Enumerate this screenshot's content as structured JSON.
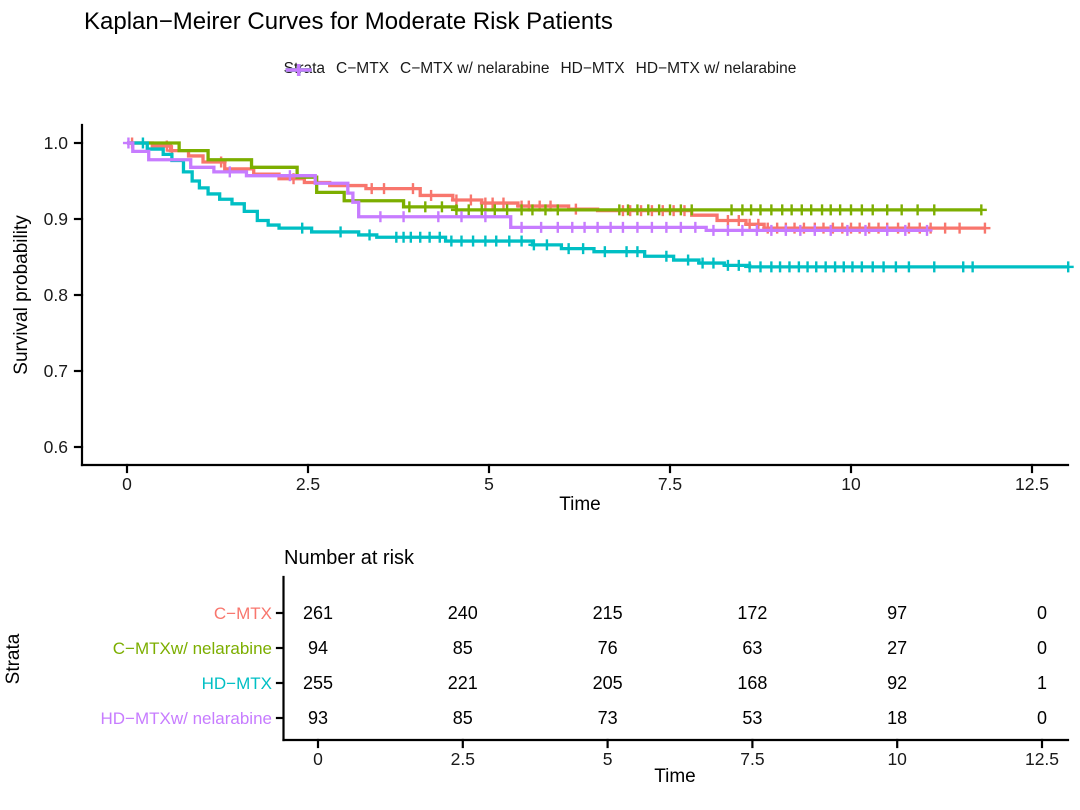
{
  "title": {
    "text": "Kaplan−Meirer Curves for Moderate Risk Patients"
  },
  "legend": {
    "label": "Strata",
    "entries": [
      {
        "label": "C−MTX",
        "color": "#F8766D"
      },
      {
        "label": "C−MTX w/ nelarabine",
        "color": "#7CAE00"
      },
      {
        "label": "HD−MTX",
        "color": "#00BFC4"
      },
      {
        "label": "HD−MTX w/ nelarabine",
        "color": "#C77CFF"
      }
    ]
  },
  "axes": {
    "xlabel": "Time",
    "ylabel": "Survival probability",
    "x_tick_values": [
      0,
      2.5,
      5,
      7.5,
      10,
      12.5
    ],
    "x_tick_labels": [
      "0",
      "2.5",
      "5",
      "7.5",
      "10",
      "12.5"
    ],
    "y_tick_values": [
      1.0,
      0.9,
      0.8,
      0.7,
      0.6
    ],
    "y_tick_labels": [
      "1.0",
      "0.9",
      "0.8",
      "0.7",
      "0.6"
    ]
  },
  "chart_data": {
    "type": "line",
    "subtype": "kaplan-meier-step",
    "title": "Kaplan−Meirer Curves for Moderate Risk Patients",
    "xlabel": "Time",
    "ylabel": "Survival probability",
    "legend_title": "Strata",
    "legend_position": "top",
    "grid": false,
    "xlim": [
      0,
      13.2
    ],
    "ylim": [
      0.58,
      1.02
    ],
    "series": [
      {
        "id": "c-mtx",
        "name": "C−MTX",
        "color": "#F8766D",
        "x": [
          0,
          0.35,
          0.6,
          0.85,
          1.05,
          1.35,
          1.75,
          2.1,
          2.45,
          2.8,
          3.3,
          4.05,
          4.5,
          4.9,
          5.4,
          6.1,
          6.5,
          7.8,
          8.15,
          8.55,
          8.8
        ],
        "y": [
          1.0,
          0.996,
          0.99,
          0.983,
          0.975,
          0.966,
          0.959,
          0.953,
          0.948,
          0.944,
          0.94,
          0.931,
          0.925,
          0.921,
          0.917,
          0.913,
          0.911,
          0.905,
          0.898,
          0.893,
          0.888
        ],
        "end_time": 11.85,
        "censor_times": [
          0.07,
          0.55,
          0.62,
          1.3,
          2.3,
          3.38,
          3.55,
          3.95,
          4.2,
          4.55,
          4.75,
          4.95,
          5.05,
          5.2,
          5.45,
          5.55,
          5.7,
          5.85,
          6.2,
          6.85,
          6.95,
          7.1,
          7.25,
          7.4,
          7.55,
          7.7,
          8.3,
          8.45,
          8.6,
          8.72,
          8.85,
          8.98,
          9.1,
          9.22,
          9.35,
          9.5,
          9.62,
          9.75,
          9.88,
          10.0,
          10.12,
          10.25,
          10.38,
          10.5,
          10.65,
          10.8,
          10.95,
          11.1,
          11.3,
          11.5,
          11.85
        ]
      },
      {
        "id": "c-mtx-nelarabine",
        "name": "C−MTX w/ nelarabine",
        "color": "#7CAE00",
        "x": [
          0,
          0.72,
          1.12,
          1.72,
          2.35,
          2.62,
          3.0,
          3.82,
          4.55
        ],
        "y": [
          1.0,
          0.99,
          0.978,
          0.968,
          0.955,
          0.935,
          0.924,
          0.916,
          0.912
        ],
        "end_time": 11.8,
        "censor_times": [
          3.9,
          4.12,
          4.35,
          4.55,
          4.72,
          4.9,
          5.08,
          5.25,
          5.45,
          5.6,
          5.78,
          5.95,
          6.8,
          6.92,
          7.05,
          7.2,
          7.35,
          7.5,
          7.65,
          7.8,
          8.35,
          8.5,
          8.62,
          8.75,
          8.9,
          9.05,
          9.18,
          9.32,
          9.45,
          9.6,
          9.72,
          9.85,
          10.0,
          10.15,
          10.3,
          10.5,
          10.7,
          10.92,
          11.15,
          11.8
        ]
      },
      {
        "id": "hd-mtx",
        "name": "HD−MTX",
        "color": "#00BFC4",
        "x": [
          0,
          0.28,
          0.5,
          0.62,
          0.78,
          0.9,
          1.0,
          1.12,
          1.28,
          1.45,
          1.62,
          1.8,
          1.95,
          2.1,
          2.55,
          3.2,
          3.45,
          4.4,
          5.6,
          6.0,
          6.45,
          7.15,
          7.55,
          7.9,
          8.25,
          8.6
        ],
        "y": [
          1.0,
          0.992,
          0.985,
          0.977,
          0.962,
          0.95,
          0.941,
          0.933,
          0.926,
          0.92,
          0.91,
          0.898,
          0.892,
          0.888,
          0.883,
          0.879,
          0.876,
          0.871,
          0.866,
          0.861,
          0.857,
          0.851,
          0.846,
          0.842,
          0.839,
          0.837
        ],
        "end_time": 13.0,
        "censor_times": [
          0.22,
          2.42,
          2.95,
          3.35,
          3.72,
          3.82,
          3.92,
          4.05,
          4.18,
          4.32,
          4.48,
          4.62,
          4.78,
          4.95,
          5.1,
          5.28,
          5.45,
          5.62,
          5.8,
          6.1,
          6.3,
          6.6,
          6.9,
          7.05,
          7.45,
          7.75,
          7.95,
          8.1,
          8.3,
          8.45,
          8.6,
          8.75,
          8.9,
          9.02,
          9.15,
          9.28,
          9.4,
          9.52,
          9.65,
          9.78,
          9.9,
          10.02,
          10.15,
          10.3,
          10.45,
          10.62,
          10.8,
          11.15,
          11.55,
          11.68,
          13.0
        ]
      },
      {
        "id": "hd-mtx-nelarabine",
        "name": "HD−MTX w/ nelarabine",
        "color": "#C77CFF",
        "x": [
          0,
          0.08,
          0.3,
          0.88,
          1.2,
          1.65,
          2.6,
          3.05,
          3.12,
          3.2,
          5.3,
          8.0
        ],
        "y": [
          1.0,
          0.989,
          0.978,
          0.968,
          0.962,
          0.957,
          0.947,
          0.934,
          0.922,
          0.903,
          0.889,
          0.885
        ],
        "end_time": 11.05,
        "censor_times": [
          0.02,
          1.42,
          2.25,
          3.5,
          3.82,
          4.3,
          4.62,
          4.95,
          5.45,
          5.72,
          5.95,
          6.15,
          6.32,
          6.5,
          6.68,
          6.85,
          7.05,
          7.25,
          7.45,
          7.65,
          7.85,
          8.1,
          8.3,
          8.5,
          8.7,
          8.9,
          9.1,
          9.3,
          9.5,
          9.72,
          9.95,
          10.2,
          10.5,
          10.75,
          11.05
        ]
      }
    ]
  },
  "risk_table": {
    "title": "Number at risk",
    "ylabel": "Strata",
    "xlabel": "Time",
    "time_points": [
      0,
      2.5,
      5,
      7.5,
      10,
      12.5
    ],
    "tick_labels": [
      "0",
      "2.5",
      "5",
      "7.5",
      "10",
      "12.5"
    ],
    "rows": [
      {
        "label": "C−MTX",
        "color": "#F8766D",
        "counts": [
          "261",
          "240",
          "215",
          "172",
          "97",
          "0"
        ]
      },
      {
        "label": "C−MTXw/ nelarabine",
        "color": "#7CAE00",
        "counts": [
          "94",
          "85",
          "76",
          "63",
          "27",
          "0"
        ]
      },
      {
        "label": "HD−MTX",
        "color": "#00BFC4",
        "counts": [
          "255",
          "221",
          "205",
          "168",
          "92",
          "1"
        ]
      },
      {
        "label": "HD−MTXw/ nelarabine",
        "color": "#C77CFF",
        "counts": [
          "93",
          "85",
          "73",
          "53",
          "18",
          "0"
        ]
      }
    ]
  }
}
